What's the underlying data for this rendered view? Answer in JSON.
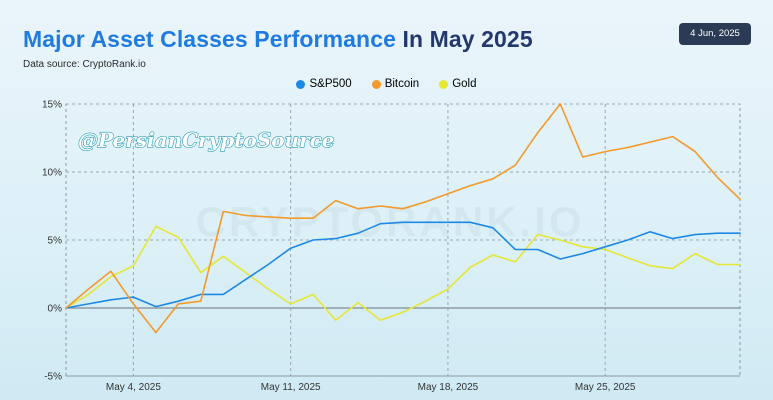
{
  "header": {
    "title_part1": "Major Asset Classes Performance",
    "title_part2": "In May 2025",
    "source": "Data source: CryptoRank.io",
    "date_badge": "4 Jun, 2025"
  },
  "watermarks": {
    "handle": "@PersianCryptoSource",
    "brand": "CRYPTORANK.IO"
  },
  "colors": {
    "title_accent": "#1f7be0",
    "title_dark": "#23386e",
    "sp500": "#1e88e5",
    "bitcoin": "#f39a2b",
    "gold": "#e6e635"
  },
  "chart_data": {
    "type": "line",
    "ylim": [
      -5,
      15
    ],
    "yticks": [
      -5,
      0,
      5,
      10,
      15
    ],
    "ytick_labels": [
      "-5%",
      "0%",
      "5%",
      "10%",
      "15%"
    ],
    "x_tick_labels": [
      "May 4, 2025",
      "May 11, 2025",
      "May 18, 2025",
      "May 25, 2025"
    ],
    "grid": true,
    "legend_position": "top-center",
    "x": [
      "2025-05-01",
      "2025-05-02",
      "2025-05-03",
      "2025-05-04",
      "2025-05-05",
      "2025-05-06",
      "2025-05-07",
      "2025-05-08",
      "2025-05-09",
      "2025-05-10",
      "2025-05-11",
      "2025-05-12",
      "2025-05-13",
      "2025-05-14",
      "2025-05-15",
      "2025-05-16",
      "2025-05-17",
      "2025-05-18",
      "2025-05-19",
      "2025-05-20",
      "2025-05-21",
      "2025-05-22",
      "2025-05-23",
      "2025-05-24",
      "2025-05-25",
      "2025-05-26",
      "2025-05-27",
      "2025-05-28",
      "2025-05-29",
      "2025-05-30",
      "2025-05-31"
    ],
    "series": [
      {
        "name": "S&P500",
        "color": "#1e88e5",
        "values": [
          0,
          0.3,
          0.6,
          0.8,
          0.1,
          0.5,
          1.0,
          1.0,
          2.1,
          3.2,
          4.4,
          5.0,
          5.1,
          5.5,
          6.2,
          6.3,
          6.3,
          6.3,
          6.3,
          5.9,
          4.3,
          4.3,
          3.6,
          4.0,
          4.5,
          5.0,
          5.6,
          5.1,
          5.4,
          5.5,
          5.5
        ]
      },
      {
        "name": "Bitcoin",
        "color": "#f39a2b",
        "values": [
          0,
          1.4,
          2.7,
          0.3,
          -1.8,
          0.3,
          0.5,
          7.1,
          6.8,
          6.7,
          6.6,
          6.6,
          7.9,
          7.3,
          7.5,
          7.3,
          7.8,
          8.4,
          9.0,
          9.5,
          10.5,
          12.9,
          15.0,
          11.1,
          11.5,
          11.8,
          12.2,
          12.6,
          11.5,
          9.6,
          8.0
        ]
      },
      {
        "name": "Gold",
        "color": "#e6e635",
        "values": [
          0,
          1.0,
          2.3,
          3.1,
          6.0,
          5.2,
          2.6,
          3.8,
          2.6,
          1.4,
          0.3,
          1.0,
          -0.9,
          0.4,
          -0.9,
          -0.3,
          0.5,
          1.4,
          3.0,
          3.9,
          3.4,
          5.4,
          5.0,
          4.5,
          4.3,
          3.7,
          3.1,
          2.9,
          4.0,
          3.2,
          3.2
        ]
      }
    ]
  }
}
